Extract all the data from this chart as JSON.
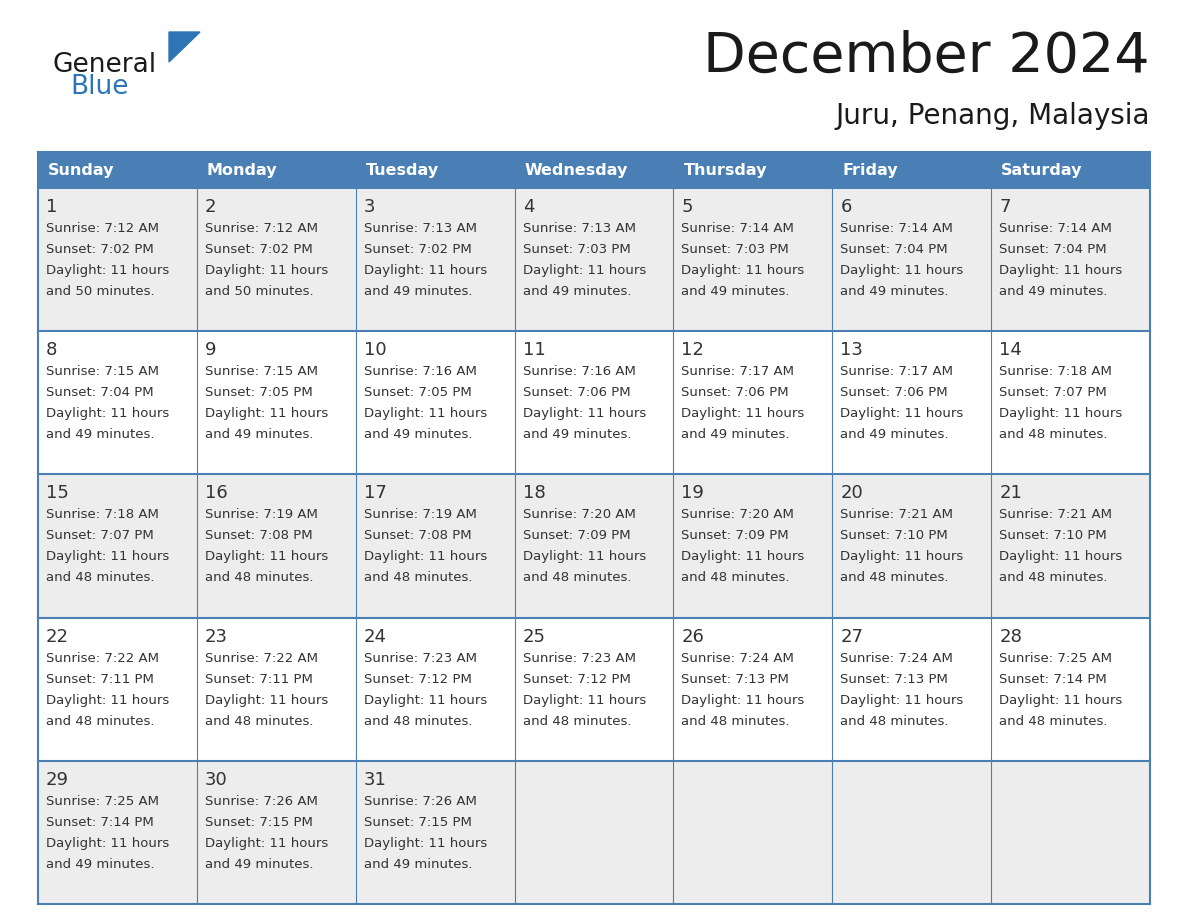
{
  "title": "December 2024",
  "subtitle": "Juru, Penang, Malaysia",
  "header_color": "#4A7FB5",
  "header_text_color": "#FFFFFF",
  "border_color": "#4A7FB5",
  "days_of_week": [
    "Sunday",
    "Monday",
    "Tuesday",
    "Wednesday",
    "Thursday",
    "Friday",
    "Saturday"
  ],
  "weeks": [
    [
      {
        "day": 1,
        "sunrise": "7:12 AM",
        "sunset": "7:02 PM",
        "daylight_hrs": 11,
        "daylight_min": 50
      },
      {
        "day": 2,
        "sunrise": "7:12 AM",
        "sunset": "7:02 PM",
        "daylight_hrs": 11,
        "daylight_min": 50
      },
      {
        "day": 3,
        "sunrise": "7:13 AM",
        "sunset": "7:02 PM",
        "daylight_hrs": 11,
        "daylight_min": 49
      },
      {
        "day": 4,
        "sunrise": "7:13 AM",
        "sunset": "7:03 PM",
        "daylight_hrs": 11,
        "daylight_min": 49
      },
      {
        "day": 5,
        "sunrise": "7:14 AM",
        "sunset": "7:03 PM",
        "daylight_hrs": 11,
        "daylight_min": 49
      },
      {
        "day": 6,
        "sunrise": "7:14 AM",
        "sunset": "7:04 PM",
        "daylight_hrs": 11,
        "daylight_min": 49
      },
      {
        "day": 7,
        "sunrise": "7:14 AM",
        "sunset": "7:04 PM",
        "daylight_hrs": 11,
        "daylight_min": 49
      }
    ],
    [
      {
        "day": 8,
        "sunrise": "7:15 AM",
        "sunset": "7:04 PM",
        "daylight_hrs": 11,
        "daylight_min": 49
      },
      {
        "day": 9,
        "sunrise": "7:15 AM",
        "sunset": "7:05 PM",
        "daylight_hrs": 11,
        "daylight_min": 49
      },
      {
        "day": 10,
        "sunrise": "7:16 AM",
        "sunset": "7:05 PM",
        "daylight_hrs": 11,
        "daylight_min": 49
      },
      {
        "day": 11,
        "sunrise": "7:16 AM",
        "sunset": "7:06 PM",
        "daylight_hrs": 11,
        "daylight_min": 49
      },
      {
        "day": 12,
        "sunrise": "7:17 AM",
        "sunset": "7:06 PM",
        "daylight_hrs": 11,
        "daylight_min": 49
      },
      {
        "day": 13,
        "sunrise": "7:17 AM",
        "sunset": "7:06 PM",
        "daylight_hrs": 11,
        "daylight_min": 49
      },
      {
        "day": 14,
        "sunrise": "7:18 AM",
        "sunset": "7:07 PM",
        "daylight_hrs": 11,
        "daylight_min": 48
      }
    ],
    [
      {
        "day": 15,
        "sunrise": "7:18 AM",
        "sunset": "7:07 PM",
        "daylight_hrs": 11,
        "daylight_min": 48
      },
      {
        "day": 16,
        "sunrise": "7:19 AM",
        "sunset": "7:08 PM",
        "daylight_hrs": 11,
        "daylight_min": 48
      },
      {
        "day": 17,
        "sunrise": "7:19 AM",
        "sunset": "7:08 PM",
        "daylight_hrs": 11,
        "daylight_min": 48
      },
      {
        "day": 18,
        "sunrise": "7:20 AM",
        "sunset": "7:09 PM",
        "daylight_hrs": 11,
        "daylight_min": 48
      },
      {
        "day": 19,
        "sunrise": "7:20 AM",
        "sunset": "7:09 PM",
        "daylight_hrs": 11,
        "daylight_min": 48
      },
      {
        "day": 20,
        "sunrise": "7:21 AM",
        "sunset": "7:10 PM",
        "daylight_hrs": 11,
        "daylight_min": 48
      },
      {
        "day": 21,
        "sunrise": "7:21 AM",
        "sunset": "7:10 PM",
        "daylight_hrs": 11,
        "daylight_min": 48
      }
    ],
    [
      {
        "day": 22,
        "sunrise": "7:22 AM",
        "sunset": "7:11 PM",
        "daylight_hrs": 11,
        "daylight_min": 48
      },
      {
        "day": 23,
        "sunrise": "7:22 AM",
        "sunset": "7:11 PM",
        "daylight_hrs": 11,
        "daylight_min": 48
      },
      {
        "day": 24,
        "sunrise": "7:23 AM",
        "sunset": "7:12 PM",
        "daylight_hrs": 11,
        "daylight_min": 48
      },
      {
        "day": 25,
        "sunrise": "7:23 AM",
        "sunset": "7:12 PM",
        "daylight_hrs": 11,
        "daylight_min": 48
      },
      {
        "day": 26,
        "sunrise": "7:24 AM",
        "sunset": "7:13 PM",
        "daylight_hrs": 11,
        "daylight_min": 48
      },
      {
        "day": 27,
        "sunrise": "7:24 AM",
        "sunset": "7:13 PM",
        "daylight_hrs": 11,
        "daylight_min": 48
      },
      {
        "day": 28,
        "sunrise": "7:25 AM",
        "sunset": "7:14 PM",
        "daylight_hrs": 11,
        "daylight_min": 48
      }
    ],
    [
      {
        "day": 29,
        "sunrise": "7:25 AM",
        "sunset": "7:14 PM",
        "daylight_hrs": 11,
        "daylight_min": 49
      },
      {
        "day": 30,
        "sunrise": "7:26 AM",
        "sunset": "7:15 PM",
        "daylight_hrs": 11,
        "daylight_min": 49
      },
      {
        "day": 31,
        "sunrise": "7:26 AM",
        "sunset": "7:15 PM",
        "daylight_hrs": 11,
        "daylight_min": 49
      },
      null,
      null,
      null,
      null
    ]
  ],
  "logo_color_general": "#1a1a1a",
  "logo_color_blue": "#2E75B6"
}
